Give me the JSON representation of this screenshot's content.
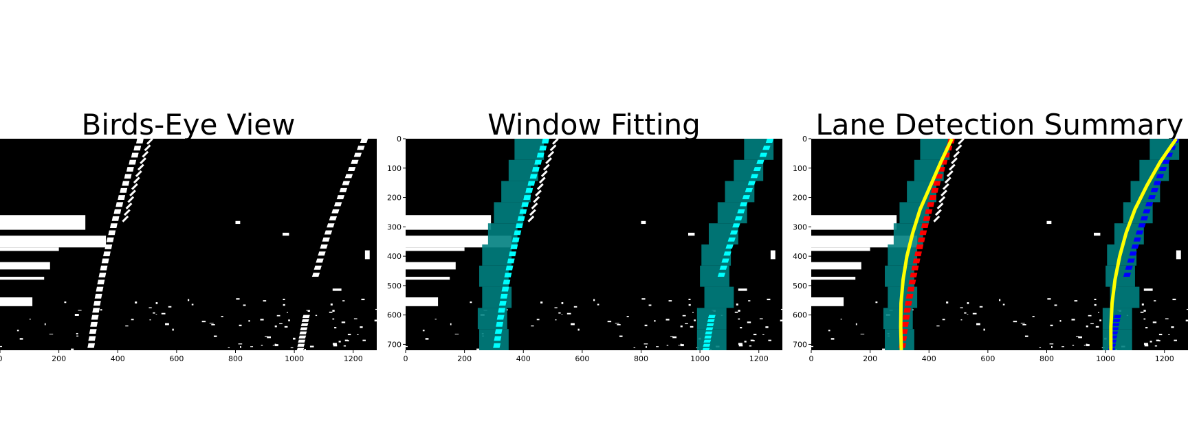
{
  "chart_data": [
    {
      "type": "heatmap",
      "title": "Birds-Eye View",
      "xlim": [
        0,
        1280
      ],
      "ylim": [
        720,
        0
      ],
      "xticks": [
        0,
        200,
        400,
        600,
        800,
        1000,
        1200
      ],
      "yticks": [],
      "colormap": "gray",
      "background": "#000000",
      "lane_pixels": "#ffffff"
    },
    {
      "type": "heatmap",
      "title": "Window Fitting",
      "xlim": [
        0,
        1280
      ],
      "ylim": [
        720,
        0
      ],
      "xticks": [
        0,
        200,
        400,
        600,
        800,
        1000,
        1200
      ],
      "yticks": [
        0,
        100,
        200,
        300,
        400,
        500,
        600,
        700
      ],
      "window_color": "#008080",
      "lane_pixel_color": "#00ffff",
      "left_windows_x": [
        420,
        400,
        375,
        350,
        330,
        310,
        300,
        310,
        295,
        300
      ],
      "right_windows_x": [
        1200,
        1165,
        1135,
        1110,
        1080,
        1055,
        1050,
        1065,
        1040,
        1040
      ]
    },
    {
      "type": "line",
      "title": "Lane Detection Summary",
      "xlim": [
        0,
        1280
      ],
      "ylim": [
        720,
        0
      ],
      "xticks": [
        0,
        200,
        400,
        600,
        800,
        1000,
        1200
      ],
      "yticks": [
        0,
        100,
        200,
        300,
        400,
        500,
        600,
        700
      ],
      "window_color": "#008080",
      "left_pixels_color": "#ff0000",
      "right_pixels_color": "#0000ff",
      "fit_line_color": "#ffff00",
      "series": [
        {
          "x": [
            478,
            440,
            405,
            370,
            345,
            325,
            312,
            305,
            304,
            306
          ],
          "y": [
            0,
            80,
            160,
            240,
            320,
            400,
            480,
            560,
            640,
            720
          ]
        },
        {
          "x": [
            1240,
            1185,
            1140,
            1100,
            1070,
            1048,
            1032,
            1022,
            1018,
            1018
          ],
          "y": [
            0,
            80,
            160,
            240,
            320,
            400,
            480,
            560,
            640,
            720
          ]
        }
      ]
    }
  ]
}
